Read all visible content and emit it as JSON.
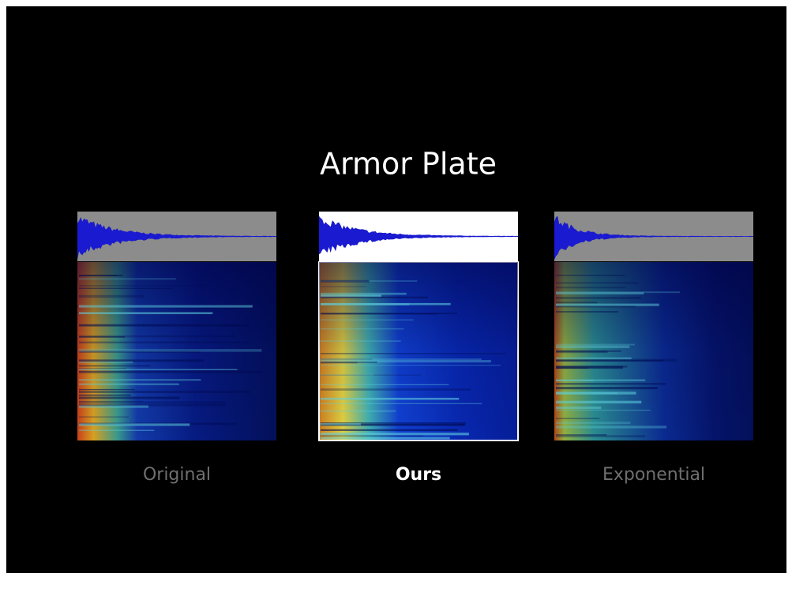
{
  "title": "Armor Plate",
  "panels": [
    {
      "label": "Original"
    },
    {
      "label": "Ours"
    },
    {
      "label": "Exponential"
    }
  ]
}
